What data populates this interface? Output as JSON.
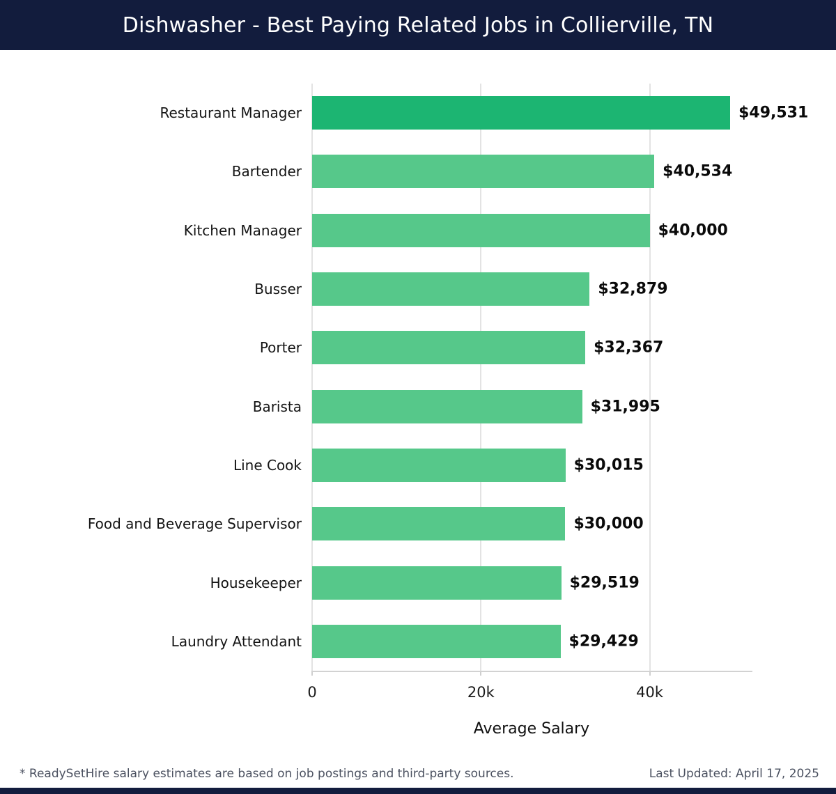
{
  "header": {
    "title": "Dishwasher - Best Paying Related Jobs in Collierville, TN"
  },
  "chart_data": {
    "type": "bar",
    "orientation": "horizontal",
    "title": "Dishwasher - Best Paying Related Jobs in Collierville, TN",
    "categories": [
      "Restaurant Manager",
      "Bartender",
      "Kitchen Manager",
      "Busser",
      "Porter",
      "Barista",
      "Line Cook",
      "Food and Beverage Supervisor",
      "Housekeeper",
      "Laundry Attendant"
    ],
    "values": [
      49531,
      40534,
      40000,
      32879,
      32367,
      31995,
      30015,
      30000,
      29519,
      29429
    ],
    "value_labels": [
      "$49,531",
      "$40,534",
      "$40,000",
      "$32,879",
      "$32,367",
      "$31,995",
      "$30,015",
      "$30,000",
      "$29,519",
      "$29,429"
    ],
    "xlabel": "Average Salary",
    "ylabel": "",
    "xlim": [
      0,
      52000
    ],
    "xticks": [
      {
        "value": 0,
        "label": "0"
      },
      {
        "value": 20000,
        "label": "20k"
      },
      {
        "value": 40000,
        "label": "40k"
      }
    ],
    "grid": true,
    "legend": false,
    "highlight_index": 0,
    "colors": {
      "highlight_bar": "#1cb572",
      "default_bar": "#56c88a"
    }
  },
  "footer": {
    "note": "* ReadySetHire salary estimates are based on job postings and third-party sources.",
    "last_updated": "Last Updated: April 17, 2025"
  },
  "colors": {
    "header_bg": "#121c3d",
    "gridline": "#e3e3e3",
    "axis": "#d2d2d2",
    "text": "#111111",
    "footer_text": "#4b5160"
  }
}
